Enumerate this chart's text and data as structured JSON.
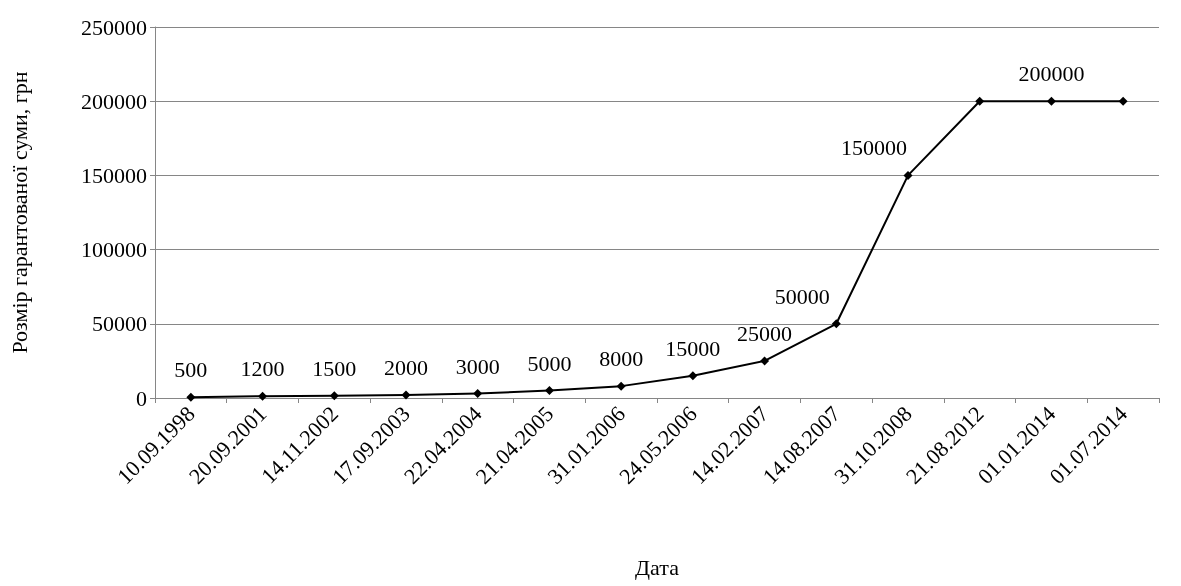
{
  "chart_data": {
    "type": "line",
    "xlabel": "Дата",
    "ylabel": "Розмір гарантованої суми, грн",
    "categories": [
      "10.09.1998",
      "20.09.2001",
      "14.11.2002",
      "17.09.2003",
      "22.04.2004",
      "21.04.2005",
      "31.01.2006",
      "24.05.2006",
      "14.02.2007",
      "14.08.2007",
      "31.10.2008",
      "21.08.2012",
      "01.01.2014",
      "01.07.2014"
    ],
    "series": [
      {
        "color": "#000000",
        "values": [
          500,
          1200,
          1500,
          2000,
          3000,
          5000,
          8000,
          15000,
          25000,
          50000,
          150000,
          200000,
          200000,
          200000
        ],
        "value_labels": [
          "500",
          "1200",
          "1500",
          "2000",
          "3000",
          "5000",
          "8000",
          "15000",
          "25000",
          "50000",
          "150000",
          null,
          "200000",
          null
        ]
      }
    ],
    "ylim": [
      0,
      250000
    ],
    "yticks": [
      0,
      50000,
      100000,
      150000,
      200000,
      250000
    ],
    "grid": "y",
    "marker": "diamond",
    "line_style": "solid"
  }
}
